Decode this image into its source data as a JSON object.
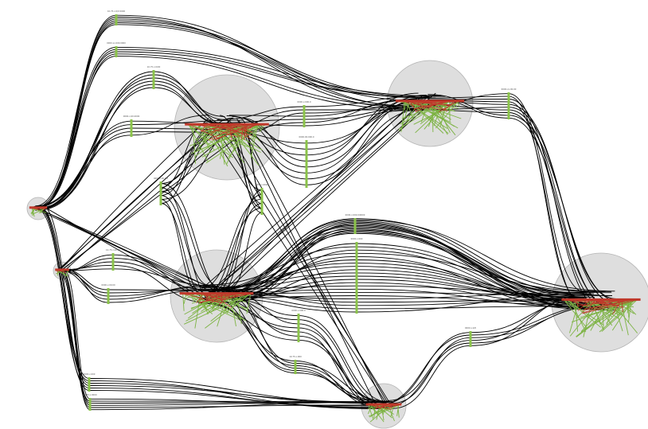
{
  "colors": {
    "background": "#ffffff",
    "cluster_fill": "#dedede",
    "cluster_stroke": "#b4b4b4",
    "edge": "#000000",
    "port": "#8bc34a",
    "intra_green": "#7cb342",
    "intra_red": "#c0392b"
  },
  "clusters": [
    {
      "id": "c1"
    },
    {
      "id": "c2"
    },
    {
      "id": "c3"
    },
    {
      "id": "c4"
    },
    {
      "id": "c5"
    },
    {
      "id": "c6"
    },
    {
      "id": "c7"
    },
    {
      "id": "c8"
    }
  ],
  "gateways": [
    {
      "id": "g1",
      "label": "10.75.x.0/0 0000"
    },
    {
      "id": "g2",
      "label": "0000.xx.000.0000"
    },
    {
      "id": "g3",
      "label": "10.75.x.0/00"
    },
    {
      "id": "g4",
      "label": "0000.x.000.0"
    },
    {
      "id": "g5",
      "label": "0000.x.00.0000"
    },
    {
      "id": "g6",
      "label": "0000.00.000.0"
    },
    {
      "id": "g7",
      "label": "0000.xx.00.00"
    },
    {
      "id": "g8",
      "label": "0000.x.00.0/0"
    },
    {
      "id": "g9",
      "label": "0000.x.0000"
    },
    {
      "id": "g10",
      "label": "0000.x.000.0/0000"
    },
    {
      "id": "g11",
      "label": "10.75.x.00.00"
    },
    {
      "id": "g12",
      "label": "0000.x.00.00"
    },
    {
      "id": "g13",
      "label": "0000.x.000"
    },
    {
      "id": "g14",
      "label": "0000.x.000.0"
    },
    {
      "id": "g15",
      "label": "10.75.x.000"
    },
    {
      "id": "g16",
      "label": "0000.x.0/0"
    },
    {
      "id": "g17",
      "label": "0000.x.000"
    },
    {
      "id": "g18",
      "label": "10.75.x.0000"
    },
    {
      "id": "g19",
      "label": "0000.x.0/00"
    }
  ]
}
